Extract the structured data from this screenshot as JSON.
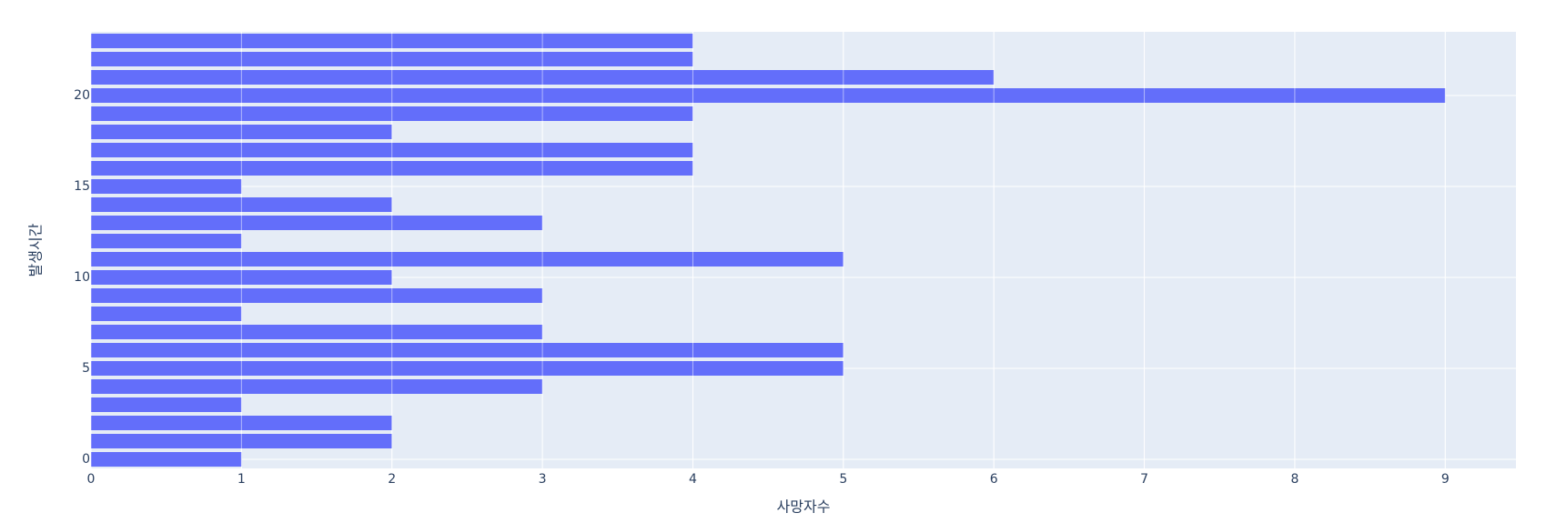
{
  "chart_data": {
    "type": "hbar",
    "xlabel": "사망자수",
    "ylabel": "발생시간",
    "y": [
      0,
      1,
      2,
      3,
      4,
      5,
      6,
      7,
      8,
      9,
      10,
      11,
      12,
      13,
      14,
      15,
      16,
      17,
      18,
      19,
      20,
      21,
      22,
      23
    ],
    "values": [
      1,
      2,
      2,
      1,
      3,
      5,
      5,
      3,
      1,
      3,
      2,
      5,
      1,
      3,
      2,
      1,
      4,
      4,
      2,
      4,
      9,
      6,
      4,
      4
    ],
    "color": "#636efa",
    "xlim": [
      0,
      9.47
    ],
    "xticks": [
      0,
      1,
      2,
      3,
      4,
      5,
      6,
      7,
      8,
      9
    ],
    "ylim": [
      -0.5,
      23.5
    ],
    "yticks": [
      0,
      5,
      10,
      15,
      20
    ],
    "grid": true
  }
}
